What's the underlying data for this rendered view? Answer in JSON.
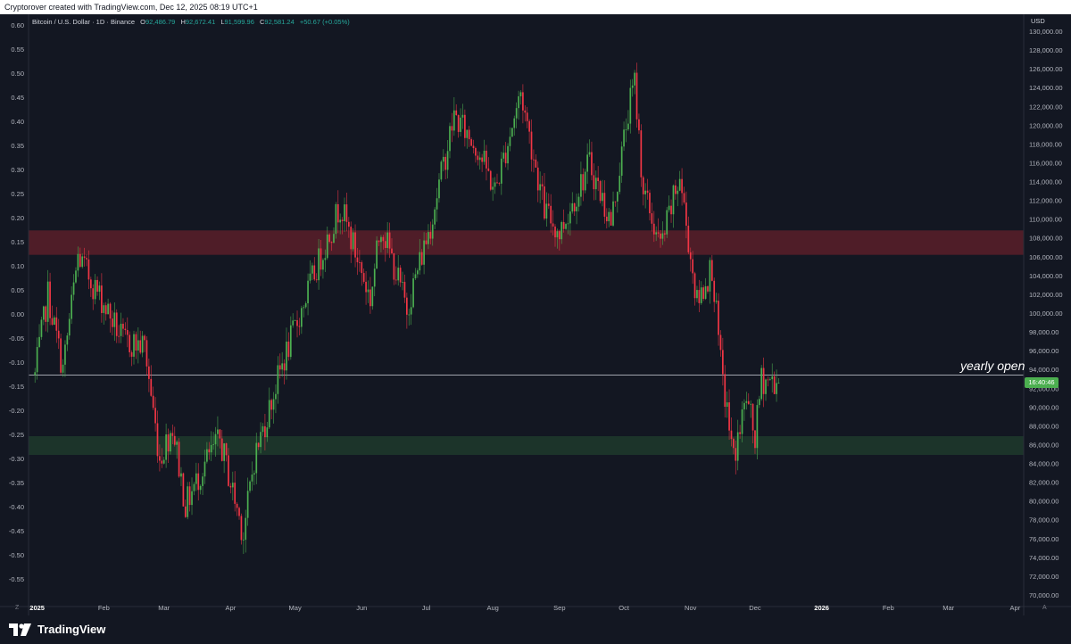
{
  "header": {
    "caption": "Cryptorover created with TradingView.com, Dec 12, 2025 08:19 UTC+1"
  },
  "legend": {
    "symbol": "Bitcoin / U.S. Dollar · 1D · Binance",
    "open_label": "O",
    "open": "92,486.79",
    "high_label": "H",
    "high": "92,672.41",
    "low_label": "L",
    "low": "91,599.96",
    "close_label": "C",
    "close": "92,581.24",
    "change": "+50.67 (+0.05%)"
  },
  "price_axis": {
    "currency": "USD",
    "labels": [
      "130,000.00",
      "128,000.00",
      "126,000.00",
      "124,000.00",
      "122,000.00",
      "120,000.00",
      "118,000.00",
      "116,000.00",
      "114,000.00",
      "112,000.00",
      "110,000.00",
      "108,000.00",
      "106,000.00",
      "104,000.00",
      "102,000.00",
      "100,000.00",
      "98,000.00",
      "96,000.00",
      "94,000.00",
      "92,000.00",
      "90,000.00",
      "88,000.00",
      "86,000.00",
      "84,000.00",
      "82,000.00",
      "80,000.00",
      "78,000.00",
      "76,000.00",
      "74,000.00",
      "72,000.00",
      "70,000.00"
    ],
    "countdown": "16:40:46"
  },
  "left_axis": {
    "labels": [
      "0.60",
      "0.55",
      "0.50",
      "0.45",
      "0.40",
      "0.35",
      "0.30",
      "0.25",
      "0.20",
      "0.15",
      "0.10",
      "0.05",
      "0.00",
      "-0.05",
      "-0.10",
      "-0.15",
      "-0.20",
      "-0.25",
      "-0.30",
      "-0.35",
      "-0.40",
      "-0.45",
      "-0.50",
      "-0.55"
    ]
  },
  "time_axis": {
    "labels": [
      "2025",
      "Feb",
      "Mar",
      "Apr",
      "May",
      "Jun",
      "Jul",
      "Aug",
      "Sep",
      "Oct",
      "Nov",
      "Dec",
      "2026",
      "Feb",
      "Mar",
      "Apr"
    ]
  },
  "annotation": {
    "text": "yearly open"
  },
  "footer": {
    "brand": "TradingView"
  },
  "controls": {
    "left_symbol": "Z",
    "right_symbol": "A"
  },
  "colors": {
    "bull": "#4caf50",
    "bear": "#f23645",
    "background": "#131722",
    "red_zone": "#5a1e29",
    "green_zone": "#1e3a2c",
    "line": "#d1d4dc"
  },
  "chart_data": {
    "type": "candlestick",
    "title": "Bitcoin / U.S. Dollar · 1D · Binance",
    "ylabel": "USD",
    "ylim": [
      69500,
      131000
    ],
    "x_range": [
      "2024-12-28",
      "2026-04-05"
    ],
    "y_scale": "linear",
    "grid": false,
    "zones": [
      {
        "type": "resistance",
        "from": 106200,
        "to": 108800,
        "color": "#5a1e29"
      },
      {
        "type": "support",
        "from": 84900,
        "to": 86900,
        "color": "#1e3a2c"
      }
    ],
    "horizontal_lines": [
      {
        "label": "yearly open",
        "value": 93400
      }
    ],
    "close_path": [
      [
        "2024-12-31",
        93400
      ],
      [
        "2025-01-06",
        102000
      ],
      [
        "2025-01-13",
        94000
      ],
      [
        "2025-01-20",
        106000
      ],
      [
        "2025-02-01",
        101000
      ],
      [
        "2025-02-10",
        97000
      ],
      [
        "2025-02-20",
        96500
      ],
      [
        "2025-02-27",
        84500
      ],
      [
        "2025-03-05",
        88000
      ],
      [
        "2025-03-11",
        79500
      ],
      [
        "2025-03-20",
        84000
      ],
      [
        "2025-03-27",
        86500
      ],
      [
        "2025-04-07",
        76500
      ],
      [
        "2025-04-12",
        84500
      ],
      [
        "2025-04-25",
        94500
      ],
      [
        "2025-05-08",
        103000
      ],
      [
        "2025-05-22",
        111500
      ],
      [
        "2025-06-05",
        101500
      ],
      [
        "2025-06-10",
        109500
      ],
      [
        "2025-06-22",
        100500
      ],
      [
        "2025-07-03",
        109500
      ],
      [
        "2025-07-14",
        121000
      ],
      [
        "2025-07-25",
        117500
      ],
      [
        "2025-08-02",
        113000
      ],
      [
        "2025-08-14",
        123500
      ],
      [
        "2025-08-25",
        111000
      ],
      [
        "2025-09-01",
        108500
      ],
      [
        "2025-09-15",
        116000
      ],
      [
        "2025-09-25",
        109500
      ],
      [
        "2025-10-03",
        121500
      ],
      [
        "2025-10-06",
        124500
      ],
      [
        "2025-10-10",
        113000
      ],
      [
        "2025-10-18",
        107000
      ],
      [
        "2025-10-27",
        114500
      ],
      [
        "2025-11-04",
        101000
      ],
      [
        "2025-11-11",
        105000
      ],
      [
        "2025-11-15",
        94500
      ],
      [
        "2025-11-21",
        84500
      ],
      [
        "2025-11-27",
        91000
      ],
      [
        "2025-12-01",
        86500
      ],
      [
        "2025-12-04",
        93000
      ],
      [
        "2025-12-12",
        92581
      ]
    ]
  }
}
